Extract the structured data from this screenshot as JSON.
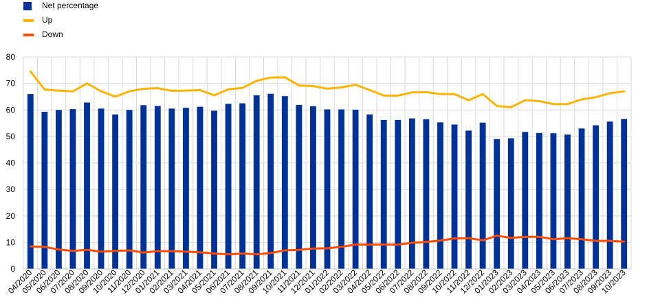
{
  "chart_data": {
    "type": "bar",
    "categories": [
      "04/2020",
      "05/2020",
      "06/2020",
      "07/2020",
      "08/2020",
      "09/2020",
      "10/2020",
      "11/2020",
      "12/2020",
      "01/2021",
      "02/2021",
      "03/2021",
      "04/2021",
      "05/2021",
      "06/2021",
      "07/2021",
      "08/2021",
      "09/2021",
      "10/2021",
      "11/2021",
      "12/2021",
      "01/2022",
      "02/2022",
      "03/2022",
      "04/2022",
      "05/2022",
      "06/2022",
      "07/2022",
      "08/2022",
      "09/2022",
      "10/2022",
      "11/2022",
      "12/2022",
      "01/2023",
      "02/2023",
      "03/2023",
      "04/2023",
      "05/2023",
      "06/2023",
      "07/2023",
      "08/2023",
      "09/2023",
      "10/2023"
    ],
    "series": [
      {
        "name": "Net percentage",
        "kind": "bar",
        "color": "#003299",
        "values": [
          66,
          59.3,
          60,
          60.3,
          62.8,
          60.5,
          58.3,
          60,
          61.8,
          61.5,
          60.5,
          60.8,
          61.2,
          59.7,
          62.3,
          62.5,
          65.5,
          66.1,
          65.2,
          61.9,
          61.4,
          60.2,
          60.2,
          60.1,
          58.3,
          56.2,
          56.2,
          56.8,
          56.5,
          55.3,
          54.5,
          52.2,
          55.2,
          49,
          49.3,
          51.7,
          51.3,
          51.2,
          50.7,
          53,
          54.2,
          55.6,
          56.6
        ]
      },
      {
        "name": "Up",
        "kind": "line",
        "color": "#FFB400",
        "values": [
          74.5,
          67.7,
          67.3,
          67,
          70,
          67,
          65,
          67,
          68,
          68.2,
          67.2,
          67.3,
          67.5,
          65.5,
          67.8,
          68.3,
          71,
          72.2,
          72.3,
          69.2,
          69,
          68,
          68.5,
          69.5,
          67.5,
          65.4,
          65.4,
          66.6,
          66.7,
          66,
          66,
          63.6,
          66,
          61.5,
          61,
          63.7,
          63.3,
          62.2,
          62.2,
          64,
          64.8,
          66.3,
          67
        ]
      },
      {
        "name": "Down",
        "kind": "line",
        "color": "#FF4B00",
        "values": [
          8.5,
          8.3,
          7.3,
          6.8,
          7.2,
          6.5,
          6.8,
          7,
          6.2,
          6.7,
          6.7,
          6.5,
          6.3,
          5.8,
          5.5,
          5.8,
          5.5,
          6,
          7,
          7.2,
          7.7,
          7.8,
          8.3,
          9.2,
          9.2,
          9.2,
          9.2,
          9.8,
          10.2,
          10.7,
          11.5,
          11.6,
          10.8,
          12.5,
          11.7,
          12.1,
          12.1,
          11.2,
          11.6,
          11.2,
          10.6,
          10.6,
          10.3
        ]
      }
    ],
    "ylim": [
      0,
      80
    ],
    "yticks": [
      "0",
      "10",
      "20",
      "30",
      "40",
      "50",
      "60",
      "70",
      "80"
    ],
    "grid": true,
    "legend_position": "top-left"
  }
}
